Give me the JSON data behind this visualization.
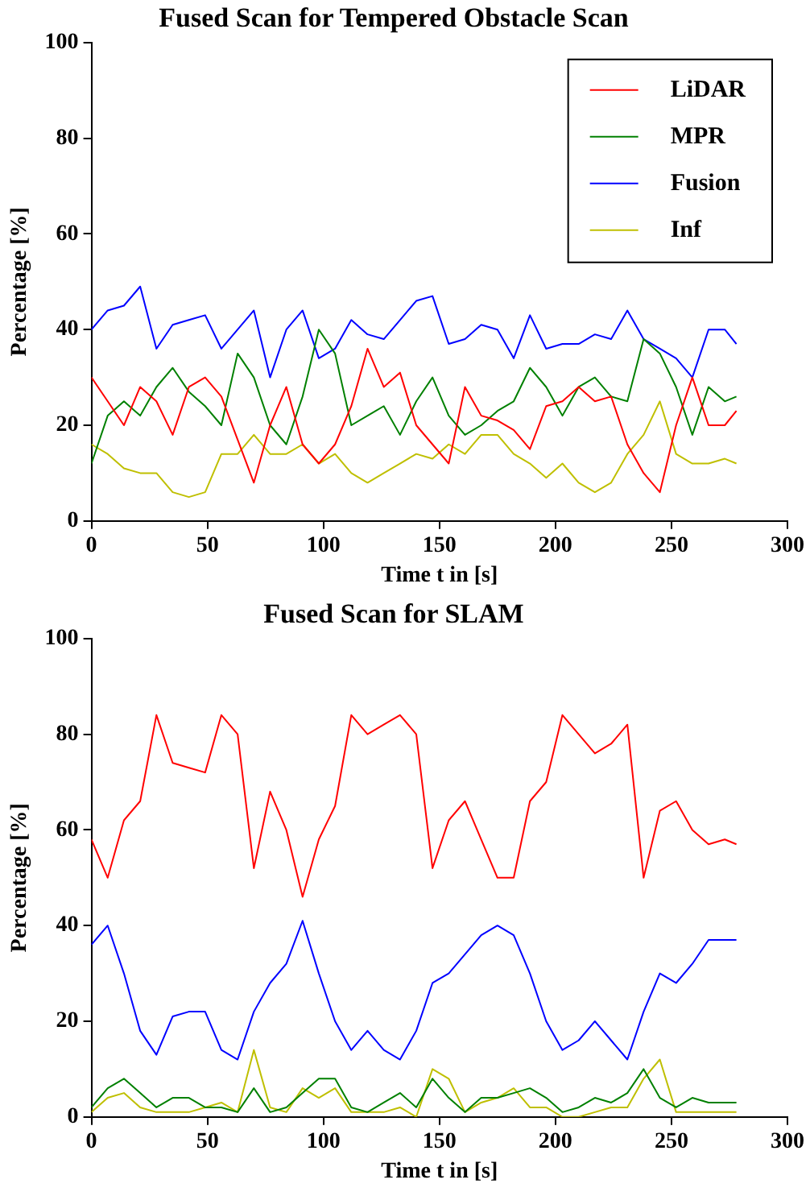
{
  "chart_data": [
    {
      "type": "line",
      "title": "Fused Scan for Tempered Obstacle Scan",
      "xlabel": "Time t in [s]",
      "ylabel": "Percentage [%]",
      "x": [
        0,
        7,
        14,
        21,
        28,
        35,
        42,
        49,
        56,
        63,
        70,
        77,
        84,
        91,
        98,
        105,
        112,
        119,
        126,
        133,
        140,
        147,
        154,
        161,
        168,
        175,
        182,
        189,
        196,
        203,
        210,
        217,
        224,
        231,
        238,
        245,
        252,
        259,
        266,
        273,
        278
      ],
      "xlim": [
        0,
        300
      ],
      "xticks": [
        0,
        50,
        100,
        150,
        200,
        250,
        300
      ],
      "ylim": [
        0,
        100
      ],
      "yticks": [
        0,
        20,
        40,
        60,
        80,
        100
      ],
      "grid": false,
      "legend": "top right",
      "marker": "none",
      "line_style": "solid",
      "series": [
        {
          "name": "LiDAR",
          "color": "#ff0000",
          "values": [
            30,
            25,
            20,
            28,
            25,
            18,
            28,
            30,
            26,
            17,
            8,
            20,
            28,
            16,
            12,
            16,
            24,
            36,
            28,
            31,
            20,
            16,
            12,
            28,
            22,
            21,
            19,
            15,
            24,
            25,
            28,
            25,
            26,
            16,
            10,
            6,
            20,
            30,
            20,
            20,
            23
          ]
        },
        {
          "name": "MPR",
          "color": "#008000",
          "values": [
            12,
            22,
            25,
            22,
            28,
            32,
            27,
            24,
            20,
            35,
            30,
            20,
            16,
            26,
            40,
            35,
            20,
            22,
            24,
            18,
            25,
            30,
            22,
            18,
            20,
            23,
            25,
            32,
            28,
            22,
            28,
            30,
            26,
            25,
            38,
            35,
            28,
            18,
            28,
            25,
            26
          ]
        },
        {
          "name": "Fusion",
          "color": "#0000ff",
          "values": [
            40,
            44,
            45,
            49,
            36,
            41,
            42,
            43,
            36,
            40,
            44,
            30,
            40,
            44,
            34,
            36,
            42,
            39,
            38,
            42,
            46,
            47,
            37,
            38,
            41,
            40,
            34,
            43,
            36,
            37,
            37,
            39,
            38,
            44,
            38,
            36,
            34,
            30,
            40,
            40,
            37
          ]
        },
        {
          "name": "Inf",
          "color": "#bfbf00",
          "values": [
            16,
            14,
            11,
            10,
            10,
            6,
            5,
            6,
            14,
            14,
            18,
            14,
            14,
            16,
            12,
            14,
            10,
            8,
            10,
            12,
            14,
            13,
            16,
            14,
            18,
            18,
            14,
            12,
            9,
            12,
            8,
            6,
            8,
            14,
            18,
            25,
            14,
            12,
            12,
            13,
            12
          ]
        }
      ]
    },
    {
      "type": "line",
      "title": "Fused Scan for SLAM",
      "xlabel": "Time t in [s]",
      "ylabel": "Percentage [%]",
      "x": [
        0,
        7,
        14,
        21,
        28,
        35,
        42,
        49,
        56,
        63,
        70,
        77,
        84,
        91,
        98,
        105,
        112,
        119,
        126,
        133,
        140,
        147,
        154,
        161,
        168,
        175,
        182,
        189,
        196,
        203,
        210,
        217,
        224,
        231,
        238,
        245,
        252,
        259,
        266,
        273,
        278
      ],
      "xlim": [
        0,
        300
      ],
      "xticks": [
        0,
        50,
        100,
        150,
        200,
        250,
        300
      ],
      "ylim": [
        0,
        100
      ],
      "yticks": [
        0,
        20,
        40,
        60,
        80,
        100
      ],
      "grid": false,
      "marker": "none",
      "line_style": "solid",
      "series": [
        {
          "color": "#ff0000",
          "values": [
            58,
            50,
            62,
            66,
            84,
            74,
            73,
            72,
            84,
            80,
            52,
            68,
            60,
            46,
            58,
            65,
            84,
            80,
            82,
            84,
            80,
            52,
            62,
            66,
            58,
            50,
            50,
            66,
            70,
            84,
            80,
            76,
            78,
            82,
            50,
            64,
            66,
            60,
            57,
            58,
            57
          ]
        },
        {
          "color": "#008000",
          "values": [
            2,
            6,
            8,
            5,
            2,
            4,
            4,
            2,
            2,
            1,
            6,
            1,
            2,
            5,
            8,
            8,
            2,
            1,
            3,
            5,
            2,
            8,
            4,
            1,
            4,
            4,
            5,
            6,
            4,
            1,
            2,
            4,
            3,
            5,
            10,
            4,
            2,
            4,
            3,
            3,
            3
          ]
        },
        {
          "color": "#0000ff",
          "values": [
            36,
            40,
            30,
            18,
            13,
            21,
            22,
            22,
            14,
            12,
            22,
            28,
            32,
            41,
            30,
            20,
            14,
            18,
            14,
            12,
            18,
            28,
            30,
            34,
            38,
            40,
            38,
            30,
            20,
            14,
            16,
            20,
            16,
            12,
            22,
            30,
            28,
            32,
            37,
            37,
            37
          ]
        },
        {
          "color": "#bfbf00",
          "values": [
            1,
            4,
            5,
            2,
            1,
            1,
            1,
            2,
            3,
            1,
            14,
            2,
            1,
            6,
            4,
            6,
            1,
            1,
            1,
            2,
            0,
            10,
            8,
            1,
            3,
            4,
            6,
            2,
            2,
            0,
            0,
            1,
            2,
            2,
            8,
            12,
            1,
            1,
            1,
            1,
            1
          ]
        }
      ]
    }
  ]
}
